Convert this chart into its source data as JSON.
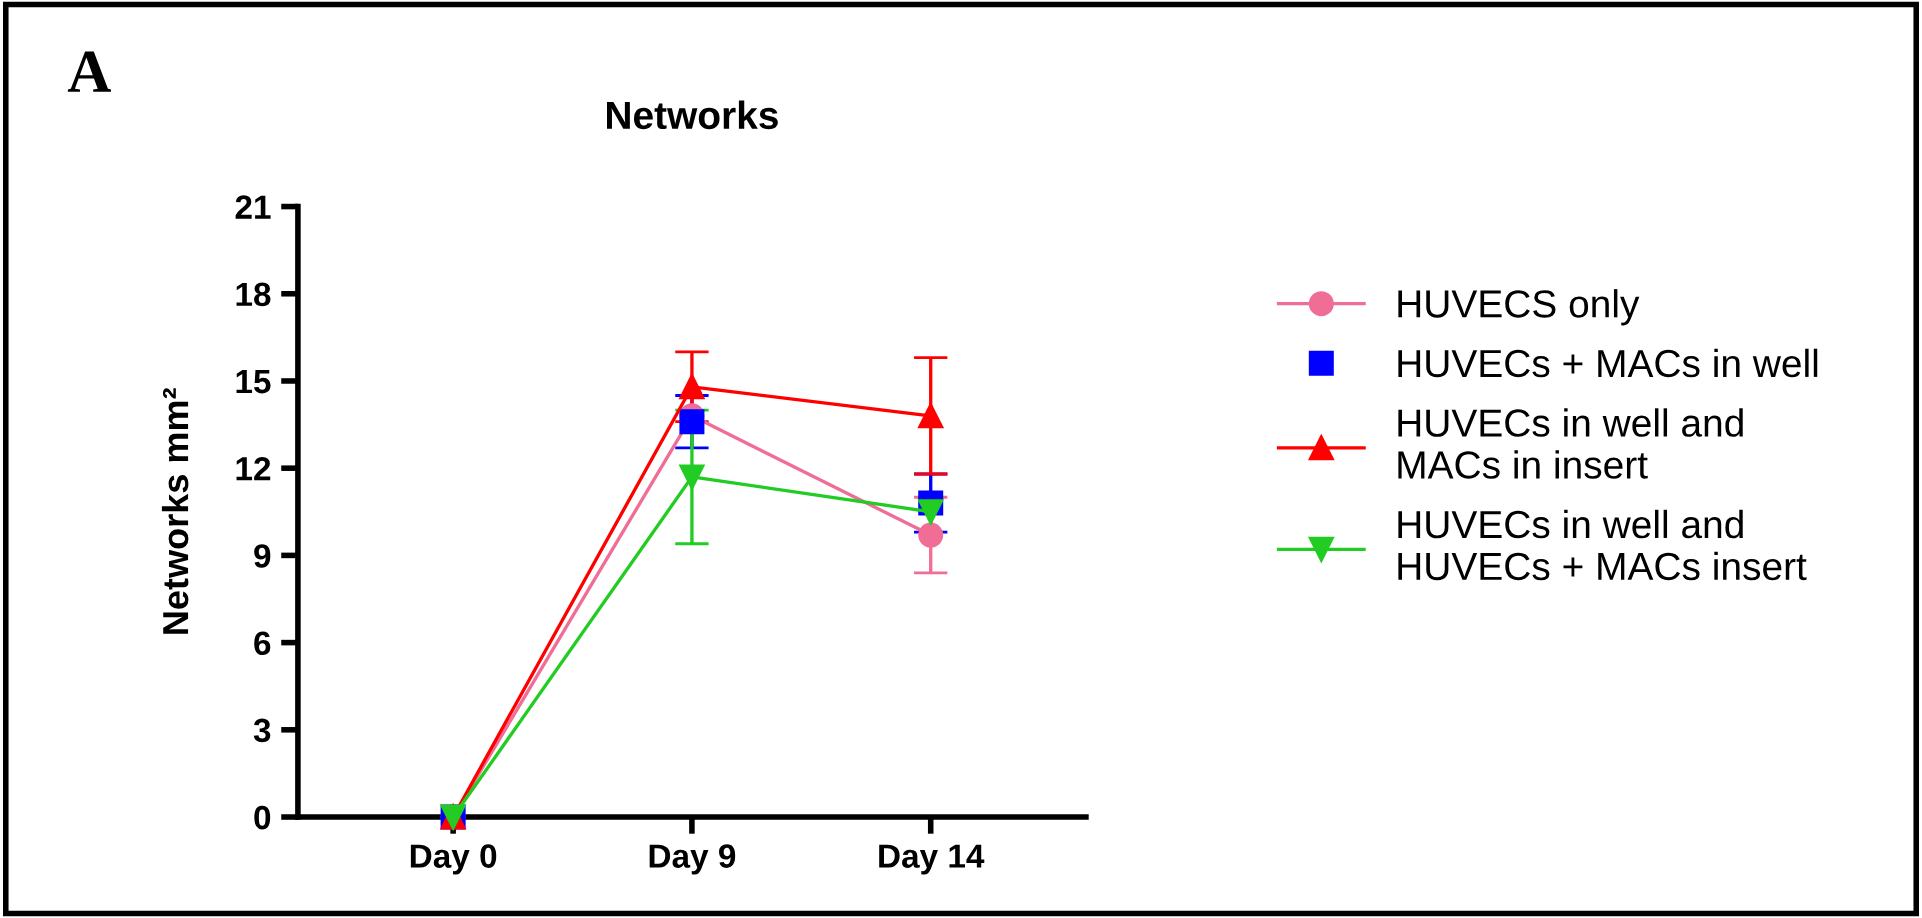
{
  "chart_data": {
    "type": "line",
    "title": "Networks",
    "ylabel": "Networks mm²",
    "annotations": [
      "A"
    ],
    "categories": [
      "Day 0",
      "Day 9",
      "Day 14"
    ],
    "ylim": [
      0,
      21
    ],
    "yticks": [
      0,
      3,
      6,
      9,
      12,
      15,
      18,
      21
    ],
    "grid": false,
    "legend": "right",
    "series": [
      {
        "name": "HUVECS only",
        "color": "#f06e96",
        "marker": "circle",
        "values": [
          0,
          13.8,
          9.7
        ],
        "errors": [
          null,
          null,
          1.3
        ]
      },
      {
        "name": "HUVECs + MACs in well",
        "color": "#0000ff",
        "type": "scatter",
        "marker": "square",
        "values": [
          0,
          13.6,
          10.8
        ],
        "errors": [
          null,
          0.9,
          1.0
        ]
      },
      {
        "name": "HUVECs in well and\nMACs in insert",
        "color": "#ff0000",
        "marker": "triangle",
        "values": [
          0,
          14.8,
          13.8
        ],
        "errors": [
          null,
          1.2,
          2.0
        ]
      },
      {
        "name": "HUVECs in well and\nHUVECs + MACs insert",
        "color": "#22cc22",
        "marker": "triangle_down",
        "values": [
          0,
          11.7,
          10.5
        ],
        "errors": [
          null,
          2.3,
          null
        ]
      }
    ]
  }
}
